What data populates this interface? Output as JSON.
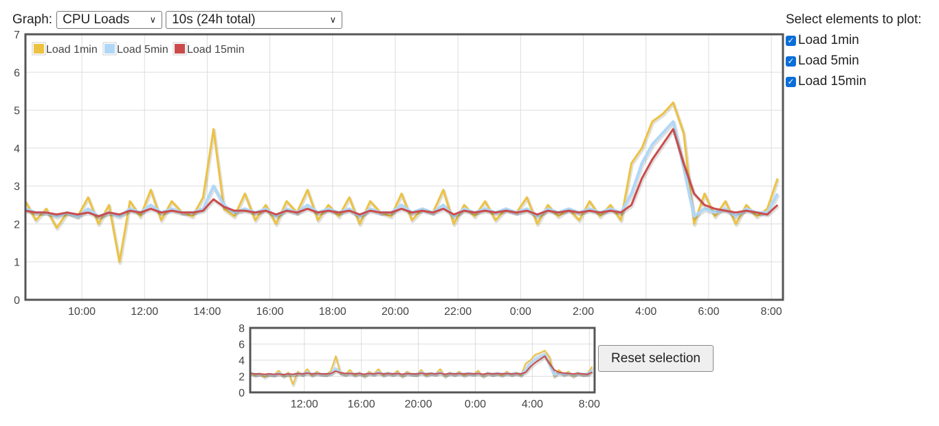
{
  "header": {
    "graph_label": "Graph:",
    "graph_select": "CPU Loads",
    "interval_select": "10s (24h total)"
  },
  "side": {
    "title": "Select elements to plot:",
    "items": [
      {
        "label": "Load 1min",
        "checked": true
      },
      {
        "label": "Load 5min",
        "checked": true
      },
      {
        "label": "Load 15min",
        "checked": true
      }
    ]
  },
  "reset_label": "Reset selection",
  "chart_data": {
    "type": "line",
    "x_start_hour": 8.2,
    "step_minutes": 20,
    "xlim": [
      8.2,
      32.37
    ],
    "main": {
      "ylim": [
        0,
        7
      ],
      "yticks": [
        "0",
        "1",
        "2",
        "3",
        "4",
        "5",
        "6",
        "7"
      ],
      "xticks": [
        {
          "h": 10,
          "label": "10:00"
        },
        {
          "h": 12,
          "label": "12:00"
        },
        {
          "h": 14,
          "label": "14:00"
        },
        {
          "h": 16,
          "label": "16:00"
        },
        {
          "h": 18,
          "label": "18:00"
        },
        {
          "h": 20,
          "label": "20:00"
        },
        {
          "h": 22,
          "label": "22:00"
        },
        {
          "h": 24,
          "label": "0:00"
        },
        {
          "h": 26,
          "label": "2:00"
        },
        {
          "h": 28,
          "label": "4:00"
        },
        {
          "h": 30,
          "label": "6:00"
        },
        {
          "h": 32,
          "label": "8:00"
        }
      ]
    },
    "overview": {
      "ylim": [
        0,
        8
      ],
      "yticks": [
        "0",
        "2",
        "4",
        "6",
        "8"
      ],
      "xticks": [
        {
          "h": 12,
          "label": "12:00"
        },
        {
          "h": 16,
          "label": "16:00"
        },
        {
          "h": 20,
          "label": "20:00"
        },
        {
          "h": 24,
          "label": "0:00"
        },
        {
          "h": 28,
          "label": "4:00"
        },
        {
          "h": 32,
          "label": "8:00"
        }
      ]
    },
    "legend": "top-left",
    "grid": true,
    "series": [
      {
        "name": "Load 1min",
        "color": "#edc240",
        "values": [
          2.6,
          2.1,
          2.4,
          1.9,
          2.3,
          2.2,
          2.7,
          2.0,
          2.5,
          1.0,
          2.6,
          2.2,
          2.9,
          2.1,
          2.6,
          2.3,
          2.2,
          2.7,
          4.5,
          2.4,
          2.2,
          2.8,
          2.1,
          2.5,
          2.0,
          2.6,
          2.3,
          2.9,
          2.1,
          2.5,
          2.2,
          2.7,
          2.0,
          2.6,
          2.3,
          2.2,
          2.8,
          2.1,
          2.4,
          2.3,
          2.9,
          2.0,
          2.5,
          2.2,
          2.6,
          2.1,
          2.4,
          2.3,
          2.7,
          2.0,
          2.5,
          2.2,
          2.4,
          2.1,
          2.6,
          2.2,
          2.5,
          2.1,
          3.6,
          4.0,
          4.7,
          4.9,
          5.2,
          4.4,
          2.0,
          2.8,
          2.2,
          2.6,
          2.0,
          2.5,
          2.2,
          2.4,
          3.2
        ]
      },
      {
        "name": "Load 5min",
        "color": "#afd8f8",
        "values": [
          2.4,
          2.3,
          2.3,
          2.2,
          2.3,
          2.2,
          2.4,
          2.2,
          2.3,
          2.2,
          2.4,
          2.3,
          2.5,
          2.3,
          2.4,
          2.3,
          2.3,
          2.4,
          3.0,
          2.5,
          2.3,
          2.4,
          2.3,
          2.4,
          2.2,
          2.4,
          2.3,
          2.5,
          2.3,
          2.4,
          2.3,
          2.4,
          2.2,
          2.4,
          2.3,
          2.3,
          2.5,
          2.3,
          2.4,
          2.3,
          2.5,
          2.2,
          2.4,
          2.3,
          2.4,
          2.3,
          2.4,
          2.3,
          2.4,
          2.2,
          2.4,
          2.3,
          2.4,
          2.3,
          2.4,
          2.3,
          2.4,
          2.3,
          2.8,
          3.6,
          4.1,
          4.4,
          4.7,
          3.5,
          2.2,
          2.4,
          2.3,
          2.4,
          2.2,
          2.4,
          2.3,
          2.3,
          2.8
        ]
      },
      {
        "name": "Load 15min",
        "color": "#cb4b4b",
        "values": [
          2.35,
          2.3,
          2.3,
          2.25,
          2.3,
          2.25,
          2.3,
          2.2,
          2.3,
          2.25,
          2.35,
          2.3,
          2.4,
          2.3,
          2.35,
          2.3,
          2.3,
          2.35,
          2.65,
          2.45,
          2.35,
          2.35,
          2.3,
          2.35,
          2.25,
          2.35,
          2.3,
          2.4,
          2.3,
          2.35,
          2.3,
          2.35,
          2.25,
          2.35,
          2.3,
          2.3,
          2.4,
          2.3,
          2.35,
          2.3,
          2.4,
          2.25,
          2.35,
          2.3,
          2.35,
          2.3,
          2.35,
          2.3,
          2.35,
          2.25,
          2.35,
          2.3,
          2.35,
          2.3,
          2.35,
          2.3,
          2.35,
          2.3,
          2.5,
          3.2,
          3.7,
          4.1,
          4.5,
          3.6,
          2.8,
          2.5,
          2.4,
          2.35,
          2.3,
          2.35,
          2.3,
          2.25,
          2.5
        ]
      }
    ]
  }
}
